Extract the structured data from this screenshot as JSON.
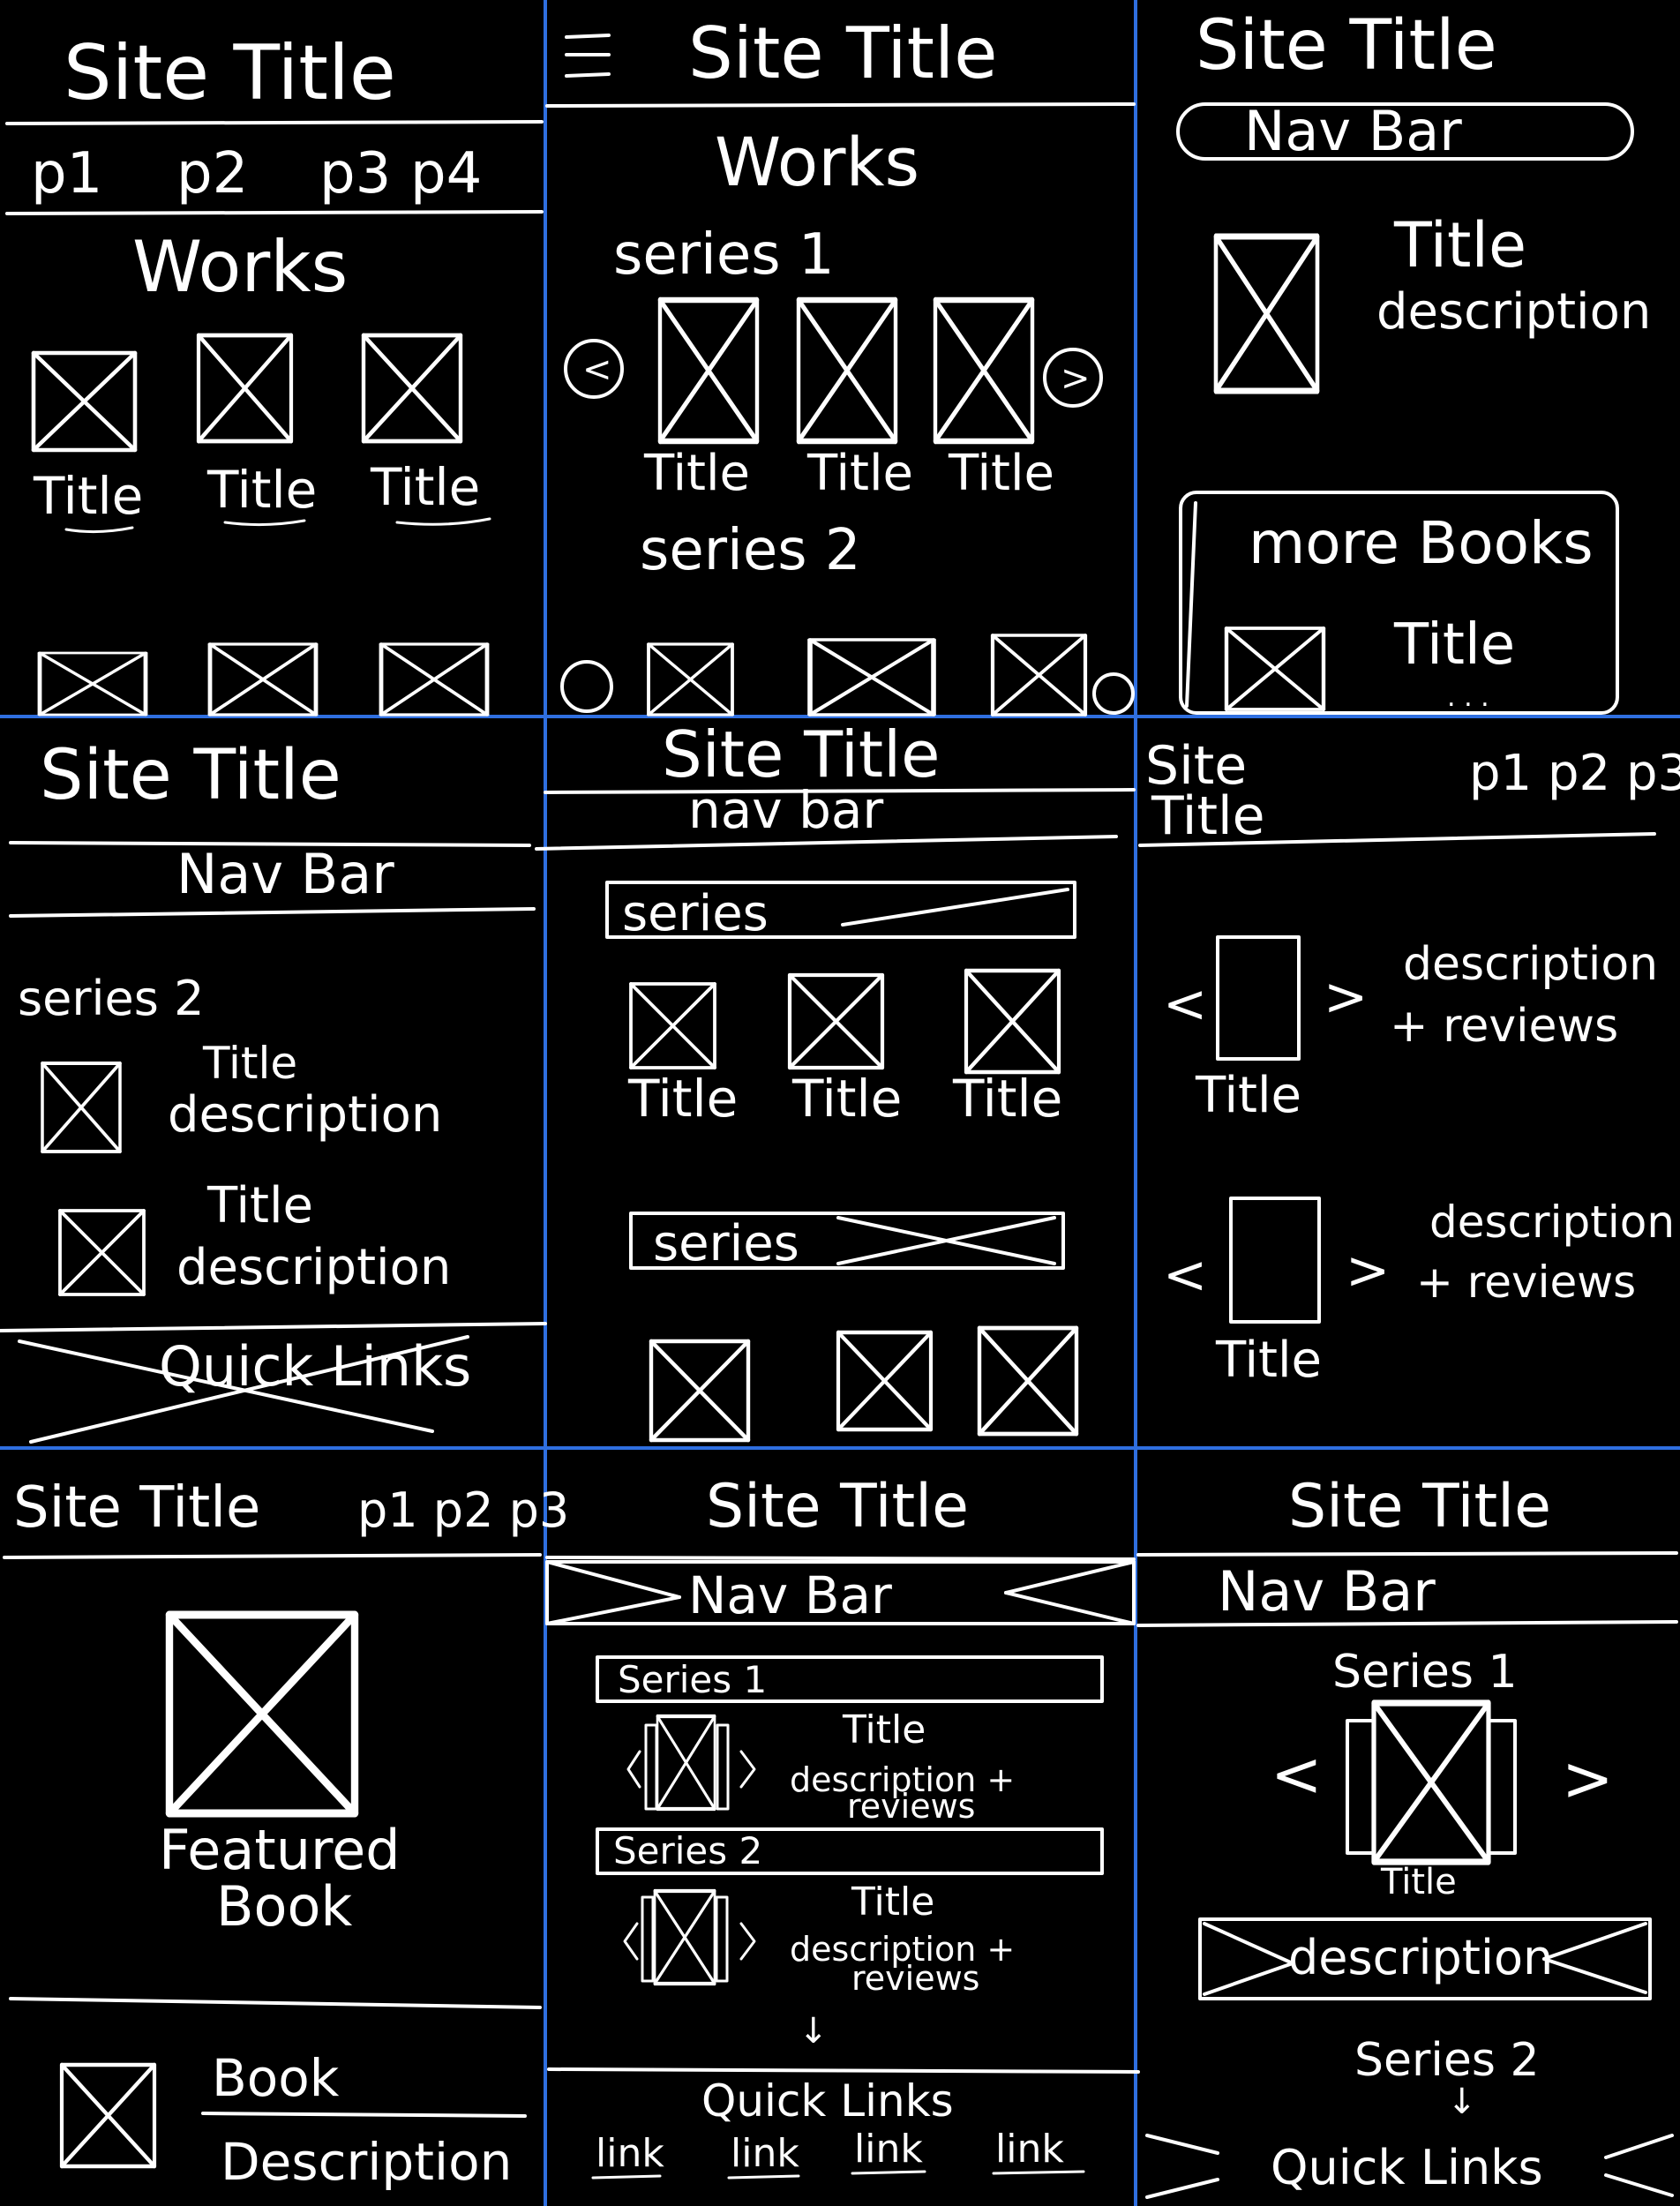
{
  "w1": {
    "site_title": "Site Title",
    "nav": [
      "p1",
      "p2",
      "p3",
      "p4"
    ],
    "heading": "Works",
    "titles": [
      "Title",
      "Title",
      "Title"
    ]
  },
  "w2": {
    "menu_icon": "hamburger-menu-icon",
    "site_title": "Site Title",
    "heading": "Works",
    "series1": "series 1",
    "series2": "series 2",
    "titles": [
      "Title",
      "Title",
      "Title"
    ],
    "prev_glyph": "<",
    "next_glyph": ">"
  },
  "w3": {
    "site_title": "Site Title",
    "nav": "Nav Bar",
    "title": "Title",
    "description": "description",
    "more_books": "more Books",
    "more_title": "Title",
    "ellipsis": ". . ."
  },
  "w4": {
    "site_title": "Site Title",
    "nav": "Nav Bar",
    "series": "series 2",
    "item1_title": "Title",
    "item1_desc": "description",
    "item2_title": "Title",
    "item2_desc": "description",
    "quick_links": "Quick Links"
  },
  "w5": {
    "site_title": "Site Title",
    "nav": "nav bar",
    "series_a": "series",
    "series_b": "series",
    "titles": [
      "Title",
      "Title",
      "Title"
    ]
  },
  "w6": {
    "site_title_line1": "Site",
    "site_title_line2": "Title",
    "nav": "p1 p2 p3",
    "desc1_line1": "description",
    "desc1_line2": "+ reviews",
    "desc2_line1": "description",
    "desc2_line2": "+ reviews",
    "title1": "Title",
    "title2": "Title",
    "lt": "<",
    "gt": ">"
  },
  "w7": {
    "site_title": "Site Title",
    "nav": "p1 p2 p3",
    "featured_line1": "Featured",
    "featured_line2": "Book",
    "book": "Book",
    "description": "Description"
  },
  "w8": {
    "site_title": "Site Title",
    "nav": "Nav Bar",
    "series1": "Series 1",
    "series2": "Series 2",
    "title1": "Title",
    "desc1_line1": "description +",
    "desc1_line2": "reviews",
    "title2": "Title",
    "desc2_line1": "description +",
    "desc2_line2": "reviews",
    "arrow": "↓",
    "quick_links": "Quick Links",
    "links": [
      "link",
      "link",
      "link",
      "link"
    ]
  },
  "w9": {
    "site_title": "Site Title",
    "nav": "Nav Bar",
    "series1": "Series 1",
    "title": "Title",
    "description": "description",
    "series2": "Series 2",
    "arrow": "↓",
    "quick_links": "Quick Links",
    "lt": "<",
    "gt": ">"
  }
}
